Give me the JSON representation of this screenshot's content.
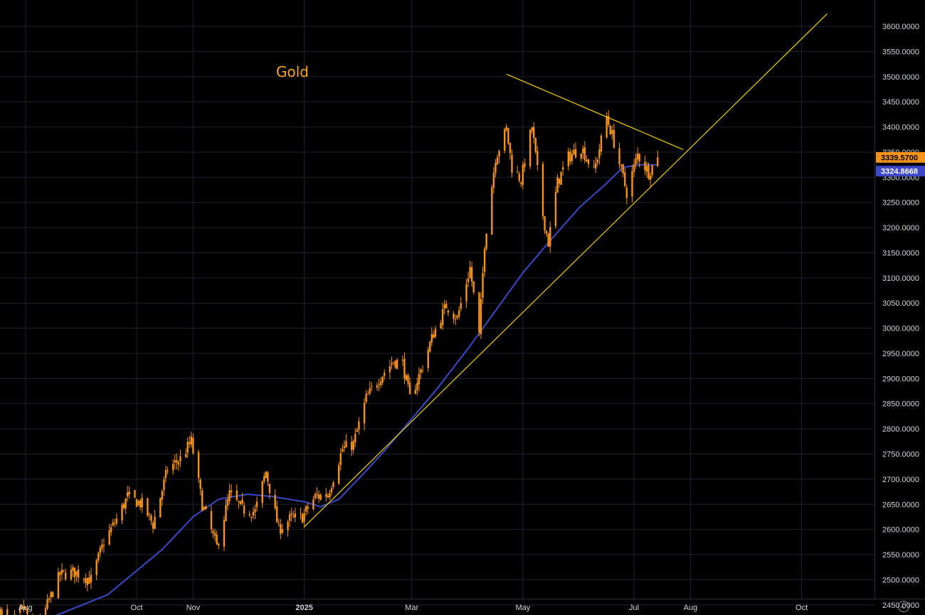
{
  "chart_data": {
    "type": "candlestick",
    "title": "Gold",
    "y_range": [
      2420,
      3610
    ],
    "y_ticks": [
      2450,
      2500,
      2550,
      2600,
      2650,
      2700,
      2750,
      2800,
      2850,
      2900,
      2950,
      3000,
      3050,
      3100,
      3150,
      3200,
      3250,
      3300,
      3350,
      3400,
      3450,
      3500,
      3550,
      3600
    ],
    "x_ticks": [
      {
        "label": "Aug",
        "date": "2024-08-01"
      },
      {
        "label": "Oct",
        "date": "2024-10-01"
      },
      {
        "label": "Nov",
        "date": "2024-11-01"
      },
      {
        "label": "2025",
        "date": "2025-01-01"
      },
      {
        "label": "Mar",
        "date": "2025-03-01"
      },
      {
        "label": "May",
        "date": "2025-05-01"
      },
      {
        "label": "Jul",
        "date": "2025-07-01"
      },
      {
        "label": "Aug",
        "date": "2025-08-01"
      },
      {
        "label": "Oct",
        "date": "2025-10-01"
      }
    ],
    "x_range": [
      "2024-07-18",
      "2025-11-10"
    ],
    "price_path": [
      [
        "2024-07-18",
        2440
      ],
      [
        "2024-07-24",
        2410
      ],
      [
        "2024-07-31",
        2445
      ],
      [
        "2024-08-07",
        2390
      ],
      [
        "2024-08-14",
        2460
      ],
      [
        "2024-08-20",
        2510
      ],
      [
        "2024-08-28",
        2515
      ],
      [
        "2024-09-06",
        2500
      ],
      [
        "2024-09-13",
        2575
      ],
      [
        "2024-09-20",
        2620
      ],
      [
        "2024-09-26",
        2665
      ],
      [
        "2024-10-04",
        2650
      ],
      [
        "2024-10-10",
        2610
      ],
      [
        "2024-10-18",
        2720
      ],
      [
        "2024-10-25",
        2740
      ],
      [
        "2024-10-31",
        2775
      ],
      [
        "2024-11-06",
        2650
      ],
      [
        "2024-11-14",
        2565
      ],
      [
        "2024-11-21",
        2670
      ],
      [
        "2024-11-28",
        2640
      ],
      [
        "2024-12-05",
        2635
      ],
      [
        "2024-12-11",
        2715
      ],
      [
        "2024-12-18",
        2600
      ],
      [
        "2024-12-24",
        2620
      ],
      [
        "2024-12-31",
        2625
      ],
      [
        "2025-01-07",
        2665
      ],
      [
        "2025-01-14",
        2670
      ],
      [
        "2025-01-22",
        2760
      ],
      [
        "2025-01-28",
        2770
      ],
      [
        "2025-02-04",
        2860
      ],
      [
        "2025-02-11",
        2900
      ],
      [
        "2025-02-19",
        2935
      ],
      [
        "2025-02-24",
        2930
      ],
      [
        "2025-02-28",
        2860
      ],
      [
        "2025-03-06",
        2915
      ],
      [
        "2025-03-13",
        2990
      ],
      [
        "2025-03-20",
        3045
      ],
      [
        "2025-03-26",
        3020
      ],
      [
        "2025-04-02",
        3120
      ],
      [
        "2025-04-07",
        2985
      ],
      [
        "2025-04-10",
        3170
      ],
      [
        "2025-04-16",
        3340
      ],
      [
        "2025-04-22",
        3395
      ],
      [
        "2025-04-25",
        3320
      ],
      [
        "2025-04-30",
        3295
      ],
      [
        "2025-05-06",
        3400
      ],
      [
        "2025-05-12",
        3225
      ],
      [
        "2025-05-15",
        3170
      ],
      [
        "2025-05-20",
        3290
      ],
      [
        "2025-05-26",
        3340
      ],
      [
        "2025-06-02",
        3360
      ],
      [
        "2025-06-09",
        3310
      ],
      [
        "2025-06-16",
        3420
      ],
      [
        "2025-06-20",
        3370
      ],
      [
        "2025-06-27",
        3270
      ],
      [
        "2025-07-03",
        3345
      ],
      [
        "2025-07-09",
        3310
      ],
      [
        "2025-07-14",
        3339.57
      ]
    ],
    "ma_series": {
      "name": "",
      "color": "#3b49c8",
      "points": [
        [
          "2024-08-15",
          2425
        ],
        [
          "2024-09-15",
          2470
        ],
        [
          "2024-10-15",
          2560
        ],
        [
          "2024-11-01",
          2625
        ],
        [
          "2024-11-15",
          2660
        ],
        [
          "2024-12-01",
          2670
        ],
        [
          "2024-12-15",
          2665
        ],
        [
          "2025-01-01",
          2655
        ],
        [
          "2025-01-10",
          2645
        ],
        [
          "2025-01-20",
          2660
        ],
        [
          "2025-02-01",
          2705
        ],
        [
          "2025-02-15",
          2760
        ],
        [
          "2025-03-01",
          2820
        ],
        [
          "2025-03-15",
          2880
        ],
        [
          "2025-04-01",
          2960
        ],
        [
          "2025-04-15",
          3030
        ],
        [
          "2025-05-01",
          3110
        ],
        [
          "2025-05-15",
          3170
        ],
        [
          "2025-06-01",
          3240
        ],
        [
          "2025-06-15",
          3285
        ],
        [
          "2025-06-25",
          3320
        ],
        [
          "2025-07-05",
          3325
        ],
        [
          "2025-07-14",
          3324.8668
        ]
      ]
    },
    "trendlines": [
      {
        "color": "#f0d000",
        "from": [
          "2025-04-22",
          3505
        ],
        "to": [
          "2025-07-28",
          3355
        ]
      },
      {
        "color": "#f0d000",
        "from": [
          "2025-01-01",
          2605
        ],
        "to": [
          "2025-10-15",
          3625
        ]
      }
    ],
    "last_price": {
      "value": "3339.5700",
      "color": "#f7931a"
    },
    "ma_last": {
      "value": "3324.8668",
      "color": "#3b49c8"
    },
    "candle_up_color": "#f7931a",
    "candle_down_color": "#f7931a",
    "grid": true
  }
}
